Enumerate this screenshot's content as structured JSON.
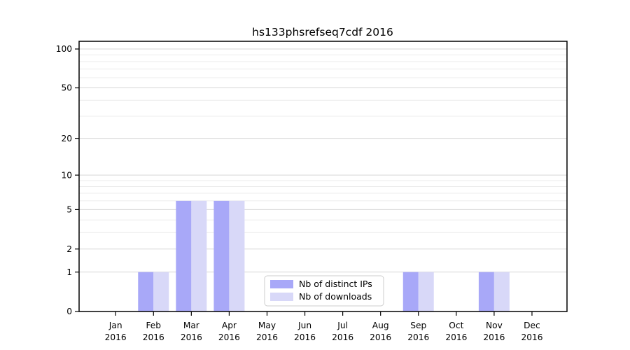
{
  "chart_data": {
    "type": "bar",
    "title": "hs133phsrefseq7cdf 2016",
    "categories": [
      "Jan",
      "Feb",
      "Mar",
      "Apr",
      "May",
      "Jun",
      "Jul",
      "Aug",
      "Sep",
      "Oct",
      "Nov",
      "Dec"
    ],
    "category_year": "2016",
    "series": [
      {
        "name": "Nb of distinct IPs",
        "color": "#a8a8f8",
        "values": [
          0,
          1,
          6,
          6,
          0,
          0,
          0,
          0,
          1,
          0,
          1,
          0
        ]
      },
      {
        "name": "Nb of downloads",
        "color": "#d8d8f8",
        "values": [
          0,
          1,
          6,
          6,
          0,
          0,
          0,
          0,
          1,
          0,
          1,
          0
        ]
      }
    ],
    "xlabel": "",
    "ylabel": "",
    "yscale": "log10(1+y)",
    "ylim": [
      0,
      114
    ],
    "yticks": [
      0,
      1,
      2,
      5,
      10,
      20,
      50,
      100
    ],
    "minor_gridlines": [
      3,
      4,
      6,
      7,
      8,
      9,
      30,
      40,
      60,
      70,
      80,
      90
    ],
    "grid": "horizontal",
    "legend": {
      "position": "bottom-center-inside",
      "entries": [
        "Nb of distinct IPs",
        "Nb of downloads"
      ]
    },
    "colors": {
      "axis": "#000000",
      "major_gridline": "#d6d6d6",
      "minor_gridline": "#ececec",
      "legend_border": "#cccccc",
      "legend_background": "#ffffff"
    }
  }
}
